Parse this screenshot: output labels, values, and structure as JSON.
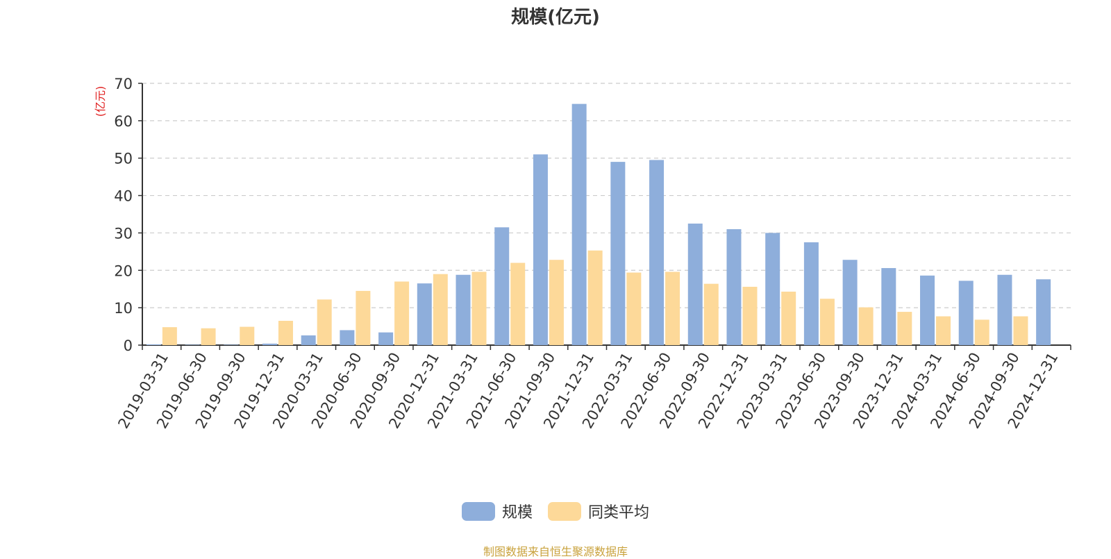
{
  "title": "规模(亿元)",
  "source": "制图数据来自恒生聚源数据库",
  "colors": {
    "series1": "#8eaedb",
    "series2": "#fdd999",
    "unit": "#e02020",
    "axis": "#333333",
    "grid": "#cccccc"
  },
  "chart_data": {
    "type": "bar",
    "title": "规模(亿元)",
    "ylabel": "(亿元)",
    "xlabel": "",
    "ylim": [
      0,
      70
    ],
    "yticks": [
      0,
      10,
      20,
      30,
      40,
      50,
      60,
      70
    ],
    "grid": true,
    "legend_position": "bottom",
    "categories": [
      "2019-03-31",
      "2019-06-30",
      "2019-09-30",
      "2019-12-31",
      "2020-03-31",
      "2020-06-30",
      "2020-09-30",
      "2020-12-31",
      "2021-03-31",
      "2021-06-30",
      "2021-09-30",
      "2021-12-31",
      "2022-03-31",
      "2022-06-30",
      "2022-09-30",
      "2022-12-31",
      "2023-03-31",
      "2023-06-30",
      "2023-09-30",
      "2023-12-31",
      "2024-03-31",
      "2024-06-30",
      "2024-09-30",
      "2024-12-31"
    ],
    "series": [
      {
        "name": "规模",
        "values": [
          0.2,
          0.1,
          0.1,
          0.4,
          2.6,
          4.0,
          3.4,
          16.5,
          18.8,
          31.5,
          51.0,
          64.5,
          49.0,
          49.5,
          32.5,
          31.0,
          30.0,
          27.5,
          22.8,
          20.6,
          18.6,
          17.2,
          18.8,
          17.6
        ]
      },
      {
        "name": "同类平均",
        "values": [
          4.8,
          4.5,
          4.9,
          6.5,
          12.2,
          14.5,
          17.0,
          19.0,
          19.6,
          22.0,
          22.8,
          25.3,
          19.4,
          19.6,
          16.4,
          15.6,
          14.3,
          12.4,
          10.1,
          8.9,
          7.7,
          6.8,
          7.7,
          null
        ]
      }
    ]
  }
}
